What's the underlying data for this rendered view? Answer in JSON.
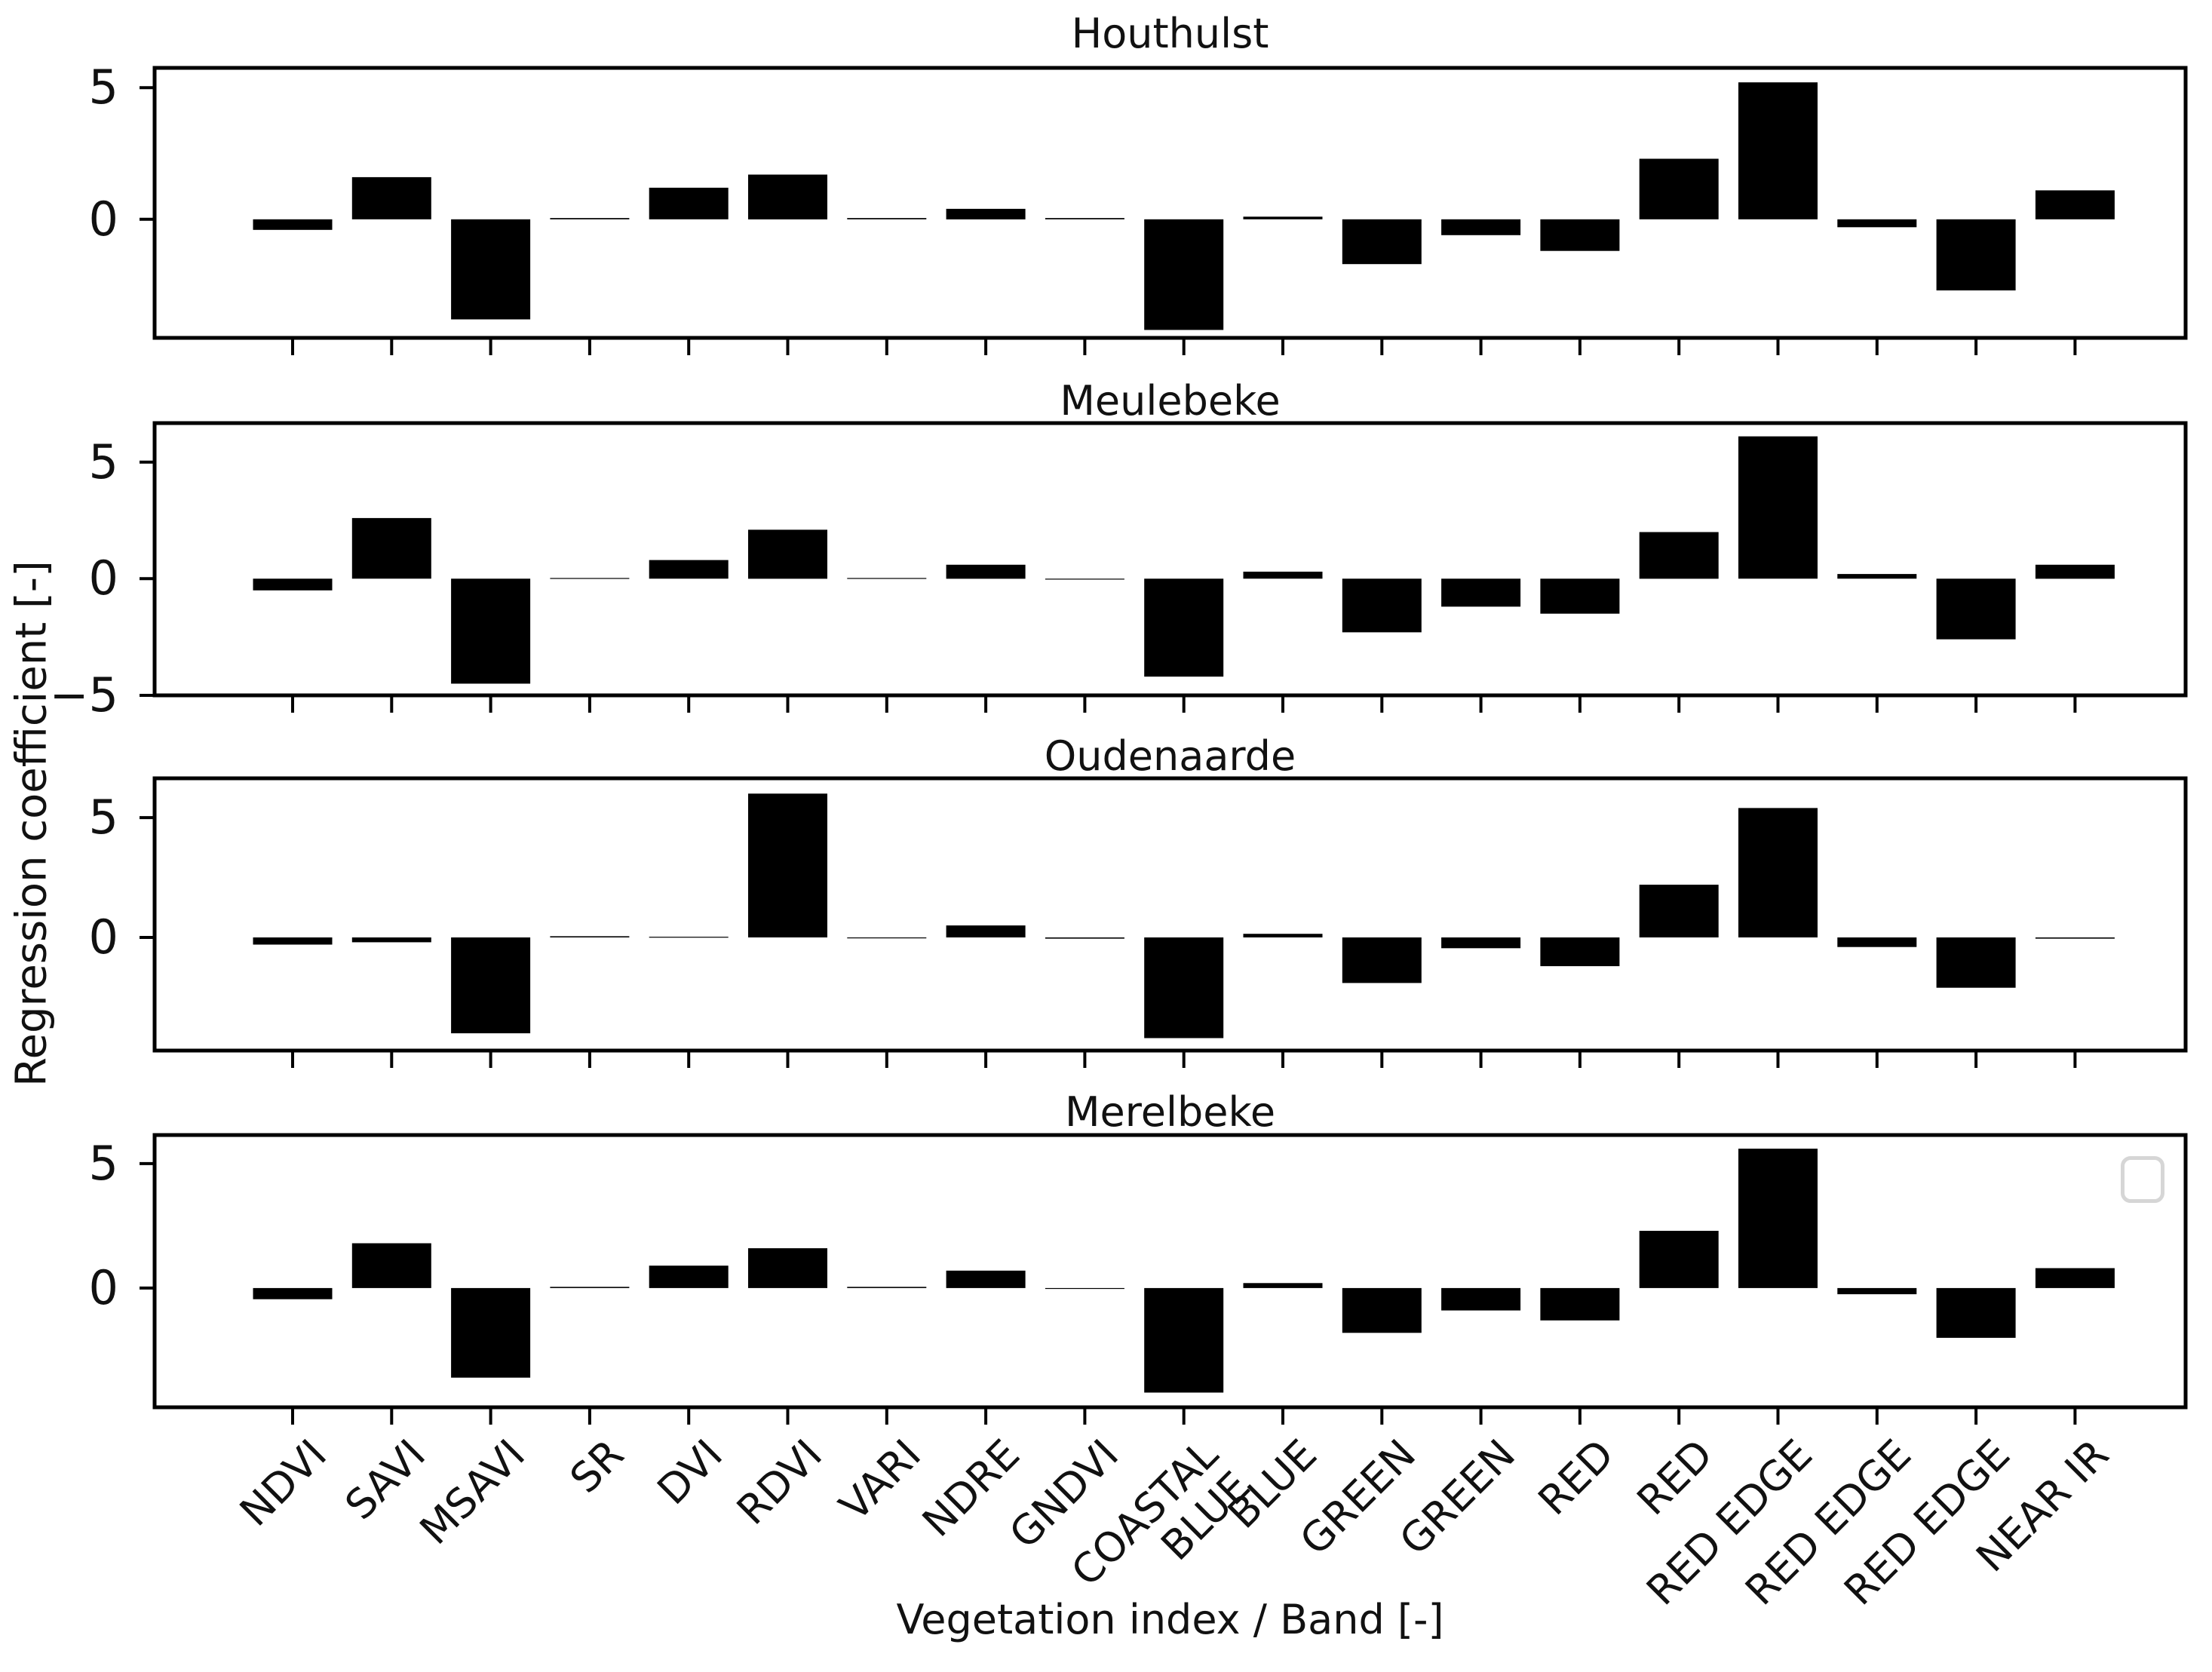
{
  "chart_data": {
    "type": "bar",
    "title": "",
    "xlabel": "Vegetation index / Band [-]",
    "ylabel": "Regression coefficient [-]",
    "grid": false,
    "bar_color": "#000000",
    "background_color": "#ffffff",
    "categories": [
      "NDVI",
      "SAVI",
      "MSAVI",
      "SR",
      "DVI",
      "RDVI",
      "VARI",
      "NDRE",
      "GNDVI",
      "COASTAL\nBLUE",
      "BLUE",
      "GREEN",
      "GREEN",
      "RED",
      "RED",
      "RED EDGE",
      "RED EDGE",
      "RED EDGE",
      "NEAR IR"
    ],
    "panels": [
      {
        "title": "Houthulst",
        "ylim": [
          -4.5,
          5.75
        ],
        "yticks": [
          {
            "label": "5",
            "value": 5
          },
          {
            "label": "0",
            "value": 0
          }
        ],
        "values": [
          -0.4,
          1.6,
          -3.8,
          0.05,
          1.2,
          1.7,
          0.05,
          0.4,
          0.05,
          -4.2,
          0.1,
          -1.7,
          -0.6,
          -1.2,
          2.3,
          5.2,
          -0.3,
          -2.7,
          1.1
        ],
        "has_empty_legend_box": false
      },
      {
        "title": "Meulebeke",
        "ylim": [
          -5.0,
          6.67
        ],
        "yticks": [
          {
            "label": "5",
            "value": 5
          },
          {
            "label": "0",
            "value": 0
          },
          {
            "label": "−5",
            "value": -5
          }
        ],
        "values": [
          -0.5,
          2.6,
          -4.5,
          0.03,
          0.8,
          2.1,
          0.03,
          0.6,
          -0.02,
          -4.2,
          0.3,
          -2.3,
          -1.2,
          -1.5,
          2.0,
          6.1,
          0.2,
          -2.6,
          0.6
        ],
        "has_empty_legend_box": false
      },
      {
        "title": "Oudenaarde",
        "ylim": [
          -4.72,
          6.64
        ],
        "yticks": [
          {
            "label": "5",
            "value": 5
          },
          {
            "label": "0",
            "value": 0
          }
        ],
        "values": [
          -0.3,
          -0.2,
          -4.0,
          0.05,
          0.03,
          6.0,
          -0.03,
          0.5,
          -0.05,
          -4.2,
          0.15,
          -1.9,
          -0.45,
          -1.2,
          2.2,
          5.4,
          -0.4,
          -2.1,
          -0.05
        ],
        "has_empty_legend_box": false
      },
      {
        "title": "Merelbeke",
        "ylim": [
          -4.79,
          6.15
        ],
        "yticks": [
          {
            "label": "5",
            "value": 5
          },
          {
            "label": "0",
            "value": 0
          }
        ],
        "values": [
          -0.45,
          1.8,
          -3.6,
          0.05,
          0.9,
          1.6,
          0.05,
          0.7,
          -0.03,
          -4.2,
          0.2,
          -1.8,
          -0.9,
          -1.3,
          2.3,
          5.6,
          -0.25,
          -2.0,
          0.8
        ],
        "has_empty_legend_box": true
      }
    ]
  }
}
